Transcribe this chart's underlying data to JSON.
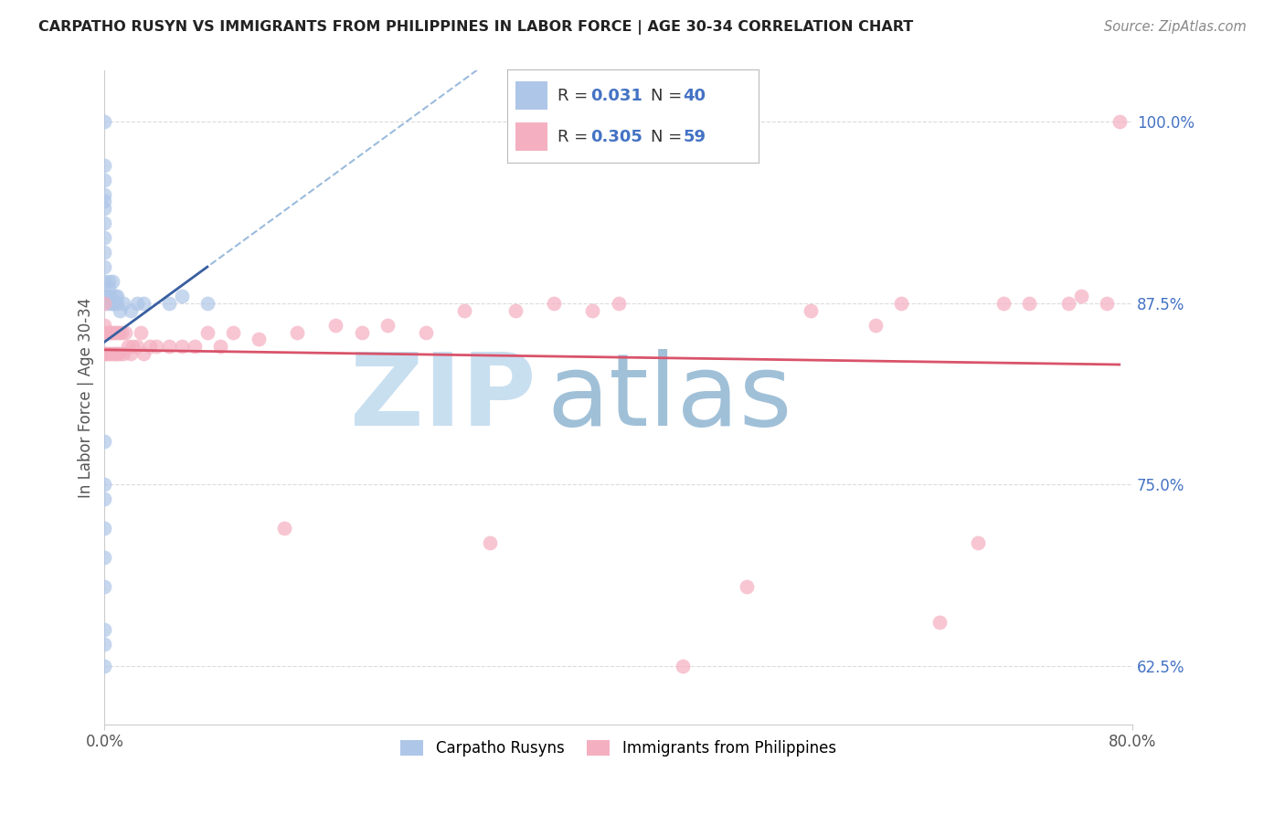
{
  "title": "CARPATHO RUSYN VS IMMIGRANTS FROM PHILIPPINES IN LABOR FORCE | AGE 30-34 CORRELATION CHART",
  "source": "Source: ZipAtlas.com",
  "ylabel": "In Labor Force | Age 30-34",
  "ytick_labels": [
    "100.0%",
    "87.5%",
    "75.0%",
    "62.5%"
  ],
  "ytick_values": [
    1.0,
    0.875,
    0.75,
    0.625
  ],
  "legend_blue_r": "0.031",
  "legend_blue_n": "40",
  "legend_pink_r": "0.305",
  "legend_pink_n": "59",
  "blue_color": "#aec6e8",
  "blue_line_color": "#3a5fa0",
  "pink_color": "#f4afc0",
  "pink_line_color": "#d9536a",
  "dashed_line_color": "#8ab0d8",
  "background_color": "#ffffff",
  "watermark_zip": "ZIP",
  "watermark_atlas": "atlas",
  "watermark_color_zip": "#c8dff0",
  "watermark_color_atlas": "#a0c0d8",
  "xlim": [
    0.0,
    0.8
  ],
  "ylim": [
    0.585,
    1.035
  ],
  "grid_color": "#cccccc",
  "blue_scatter_x": [
    0.0,
    0.0,
    0.0,
    0.0,
    0.0,
    0.0,
    0.0,
    0.0,
    0.0,
    0.0,
    0.0,
    0.0,
    0.0,
    0.0,
    0.0,
    0.0,
    0.0,
    0.0,
    0.0,
    0.0,
    0.0,
    0.002,
    0.002,
    0.003,
    0.003,
    0.004,
    0.005,
    0.006,
    0.007,
    0.008,
    0.01,
    0.01,
    0.012,
    0.015,
    0.02,
    0.025,
    0.03,
    0.05,
    0.06,
    0.08
  ],
  "blue_scatter_y": [
    0.625,
    0.64,
    0.65,
    0.68,
    0.7,
    0.72,
    0.74,
    0.75,
    0.78,
    0.88,
    0.89,
    0.9,
    0.91,
    0.92,
    0.93,
    0.94,
    0.945,
    0.95,
    0.96,
    0.97,
    1.0,
    0.875,
    0.88,
    0.885,
    0.89,
    0.88,
    0.875,
    0.89,
    0.875,
    0.88,
    0.875,
    0.88,
    0.87,
    0.875,
    0.87,
    0.875,
    0.875,
    0.875,
    0.88,
    0.875
  ],
  "pink_scatter_x": [
    0.0,
    0.0,
    0.0,
    0.0,
    0.0,
    0.002,
    0.003,
    0.004,
    0.005,
    0.006,
    0.007,
    0.008,
    0.009,
    0.01,
    0.011,
    0.012,
    0.013,
    0.015,
    0.016,
    0.018,
    0.02,
    0.022,
    0.025,
    0.028,
    0.03,
    0.035,
    0.04,
    0.05,
    0.06,
    0.07,
    0.08,
    0.09,
    0.1,
    0.12,
    0.14,
    0.15,
    0.18,
    0.2,
    0.22,
    0.25,
    0.28,
    0.3,
    0.32,
    0.35,
    0.38,
    0.4,
    0.45,
    0.5,
    0.55,
    0.6,
    0.62,
    0.65,
    0.68,
    0.7,
    0.72,
    0.75,
    0.76,
    0.78,
    0.79
  ],
  "pink_scatter_y": [
    0.84,
    0.855,
    0.84,
    0.86,
    0.875,
    0.84,
    0.855,
    0.84,
    0.855,
    0.84,
    0.855,
    0.84,
    0.855,
    0.84,
    0.855,
    0.84,
    0.855,
    0.84,
    0.855,
    0.845,
    0.84,
    0.845,
    0.845,
    0.855,
    0.84,
    0.845,
    0.845,
    0.845,
    0.845,
    0.845,
    0.855,
    0.845,
    0.855,
    0.85,
    0.72,
    0.855,
    0.86,
    0.855,
    0.86,
    0.855,
    0.87,
    0.71,
    0.87,
    0.875,
    0.87,
    0.875,
    0.625,
    0.68,
    0.87,
    0.86,
    0.875,
    0.655,
    0.71,
    0.875,
    0.875,
    0.875,
    0.88,
    0.875,
    1.0
  ]
}
